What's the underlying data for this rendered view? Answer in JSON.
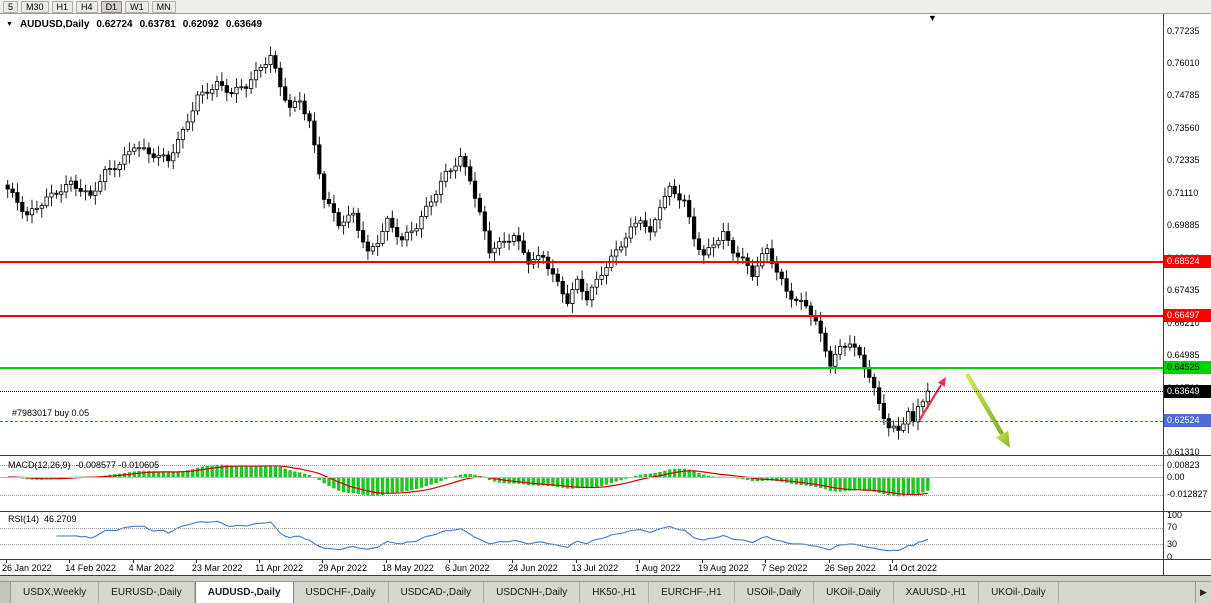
{
  "toolbar": {
    "timeframes": [
      {
        "label": "5",
        "active": false
      },
      {
        "label": "M30",
        "active": false
      },
      {
        "label": "H1",
        "active": false
      },
      {
        "label": "H4",
        "active": false
      },
      {
        "label": "D1",
        "active": true
      },
      {
        "label": "W1",
        "active": false
      },
      {
        "label": "MN",
        "active": false
      }
    ]
  },
  "icons": {
    "dropdown": "▼",
    "shift_marker": "▼",
    "tab_scroll_right": "▶"
  },
  "chart_header": {
    "symbol_title": "AUDUSD,Daily",
    "open": "0.62724",
    "high": "0.63781",
    "low": "0.62092",
    "close": "0.63649"
  },
  "position": {
    "label": "#7983017 buy 0.05",
    "price": 0.62524
  },
  "levels": [
    {
      "id": "resistance-1",
      "price": 0.68524,
      "label": "0.68524",
      "color": "#ff0000",
      "dash": "solid",
      "width": 2,
      "badge_fg": "#ffffff"
    },
    {
      "id": "resistance-2",
      "price": 0.66497,
      "label": "0.66497",
      "color": "#ff0000",
      "dash": "solid",
      "width": 2,
      "badge_fg": "#ffffff"
    },
    {
      "id": "support-green",
      "price": 0.64525,
      "label": "0.64525",
      "color": "#00d200",
      "dash": "solid",
      "width": 2,
      "badge_fg": "#000000"
    },
    {
      "id": "current-price",
      "price": 0.63649,
      "label": "0.63649",
      "color": "#000000",
      "dash": "dotted",
      "width": 1,
      "badge_fg": "#ffffff"
    },
    {
      "id": "position-line",
      "price": 0.62524,
      "label": "0.62524",
      "color": "#4f6bd5",
      "dash": "dashed",
      "width": 1,
      "badge_fg": "#ffffff"
    }
  ],
  "price_axis": {
    "labels": [
      "0.77235",
      "0.76010",
      "0.74785",
      "0.73560",
      "0.72335",
      "0.71110",
      "0.69885",
      "0.68660",
      "0.67435",
      "0.66210",
      "0.64985",
      "0.63760",
      "0.62535",
      "0.61310"
    ]
  },
  "indicators": {
    "macd": {
      "label": "MACD(12,26,9)",
      "values": "-0.008577 -0.010605",
      "axis": [
        {
          "v": 0.00823,
          "label": "0.00823",
          "line": "dotted"
        },
        {
          "v": 0,
          "label": "0.00",
          "line": "solid"
        },
        {
          "v": -0.012827,
          "label": "-0.012827",
          "line": "dotted"
        }
      ]
    },
    "rsi": {
      "label": "RSI(14)",
      "value": "46.2709",
      "axis": [
        {
          "v": 100,
          "label": "100",
          "line": null
        },
        {
          "v": 70,
          "label": "70",
          "line": "dotted"
        },
        {
          "v": 30,
          "label": "30",
          "line": "dotted"
        },
        {
          "v": 0,
          "label": "0",
          "line": null
        }
      ]
    }
  },
  "date_axis": {
    "labels": [
      "26 Jan 2022",
      "14 Feb 2022",
      "4 Mar 2022",
      "23 Mar 2022",
      "11 Apr 2022",
      "29 Apr 2022",
      "18 May 2022",
      "6 Jun 2022",
      "24 Jun 2022",
      "13 Jul 2022",
      "1 Aug 2022",
      "19 Aug 2022",
      "7 Sep 2022",
      "26 Sep 2022",
      "14 Oct 2022"
    ]
  },
  "tabs": [
    {
      "label": "USDX,Weekly",
      "active": false
    },
    {
      "label": "EURUSD-,Daily",
      "active": false
    },
    {
      "label": "AUDUSD-,Daily",
      "active": true
    },
    {
      "label": "USDCHF-,Daily",
      "active": false
    },
    {
      "label": "USDCAD-,Daily",
      "active": false
    },
    {
      "label": "USDCNH-,Daily",
      "active": false
    },
    {
      "label": "HK50-,H1",
      "active": false
    },
    {
      "label": "EURCHF-,H1",
      "active": false
    },
    {
      "label": "USOil-,Daily",
      "active": false
    },
    {
      "label": "UKOil-,Daily",
      "active": false
    },
    {
      "label": "XAUUSD-,H1",
      "active": false
    },
    {
      "label": "UKOil-,Daily",
      "active": false
    }
  ],
  "chart_data": {
    "type": "candlestick",
    "symbol": "AUDUSD",
    "timeframe": "Daily",
    "title": "AUDUSD,Daily 0.62724 0.63781 0.62092 0.63649",
    "price_axis_top": 0.77235,
    "price_axis_step": 0.01225,
    "candle_count": 190,
    "last_close": 0.63649,
    "close_anchors": [
      [
        0,
        0.712
      ],
      [
        4,
        0.703
      ],
      [
        8,
        0.71
      ],
      [
        13,
        0.7145
      ],
      [
        17,
        0.709
      ],
      [
        20,
        0.719
      ],
      [
        23,
        0.723
      ],
      [
        26,
        0.73
      ],
      [
        29,
        0.726
      ],
      [
        33,
        0.723
      ],
      [
        36,
        0.734
      ],
      [
        39,
        0.748
      ],
      [
        43,
        0.753
      ],
      [
        46,
        0.749
      ],
      [
        49,
        0.751
      ],
      [
        52,
        0.758
      ],
      [
        54,
        0.763
      ],
      [
        56,
        0.752
      ],
      [
        58,
        0.744
      ],
      [
        60,
        0.747
      ],
      [
        62,
        0.738
      ],
      [
        65,
        0.709
      ],
      [
        68,
        0.699
      ],
      [
        71,
        0.703
      ],
      [
        74,
        0.689
      ],
      [
        76,
        0.694
      ],
      [
        78,
        0.701
      ],
      [
        81,
        0.693
      ],
      [
        84,
        0.698
      ],
      [
        87,
        0.708
      ],
      [
        90,
        0.719
      ],
      [
        93,
        0.725
      ],
      [
        95,
        0.717
      ],
      [
        97,
        0.703
      ],
      [
        99,
        0.689
      ],
      [
        102,
        0.692
      ],
      [
        104,
        0.695
      ],
      [
        107,
        0.686
      ],
      [
        110,
        0.688
      ],
      [
        113,
        0.677
      ],
      [
        115,
        0.67
      ],
      [
        117,
        0.677
      ],
      [
        119,
        0.671
      ],
      [
        122,
        0.681
      ],
      [
        125,
        0.69
      ],
      [
        128,
        0.698
      ],
      [
        130,
        0.702
      ],
      [
        132,
        0.695
      ],
      [
        134,
        0.706
      ],
      [
        136,
        0.712
      ],
      [
        139,
        0.708
      ],
      [
        141,
        0.695
      ],
      [
        143,
        0.688
      ],
      [
        145,
        0.693
      ],
      [
        147,
        0.696
      ],
      [
        149,
        0.689
      ],
      [
        151,
        0.685
      ],
      [
        153,
        0.68
      ],
      [
        155,
        0.687
      ],
      [
        156,
        0.69
      ],
      [
        158,
        0.682
      ],
      [
        160,
        0.675
      ],
      [
        162,
        0.671
      ],
      [
        164,
        0.669
      ],
      [
        166,
        0.662
      ],
      [
        169,
        0.646
      ],
      [
        171,
        0.652
      ],
      [
        173,
        0.655
      ],
      [
        175,
        0.65
      ],
      [
        177,
        0.643
      ],
      [
        179,
        0.632
      ],
      [
        181,
        0.623
      ],
      [
        183,
        0.621
      ],
      [
        185,
        0.628
      ],
      [
        186,
        0.623
      ],
      [
        187,
        0.63
      ],
      [
        188,
        0.633
      ],
      [
        189,
        0.63649
      ]
    ]
  }
}
